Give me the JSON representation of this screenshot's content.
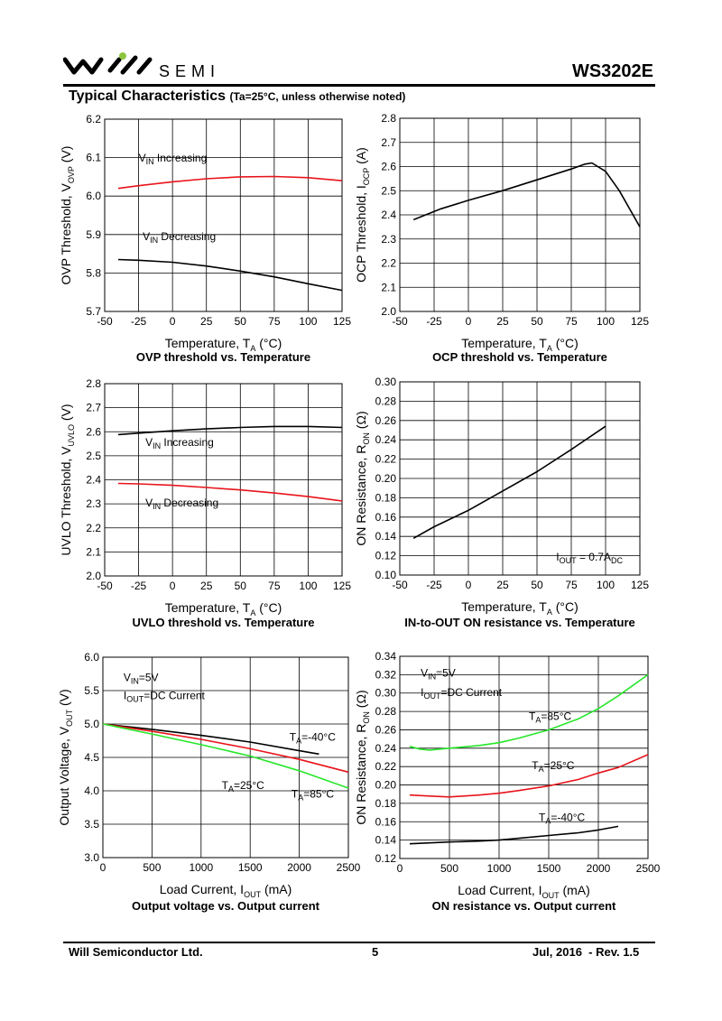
{
  "header": {
    "logo_text": "SEMI",
    "part_number": "WS3202E"
  },
  "section": {
    "title": "Typical Characteristics",
    "condition": "(Ta=25°C, unless otherwise noted)"
  },
  "footer": {
    "company": "Will Semiconductor Ltd.",
    "page": "5",
    "revision": "Jul, 2016  - Rev. 1.5"
  },
  "colors": {
    "red": "#e8141b",
    "black": "#000000",
    "green": "#25e628"
  },
  "chart_data": [
    {
      "type": "line",
      "caption": "OVP threshold vs. Temperature",
      "ylabel": "OVP Threshold, V",
      "ylabel_sub": "OVP",
      "ylabel_unit": " (V)",
      "xlabel": "Temperature, T",
      "xlabel_sub": "A",
      "xlabel_unit": " (°C)",
      "xlim": [
        -50,
        125
      ],
      "ylim": [
        5.7,
        6.2
      ],
      "xticks": [
        -50,
        -25,
        0,
        25,
        50,
        75,
        100,
        125
      ],
      "yticks": [
        5.7,
        5.8,
        5.9,
        6.0,
        6.1,
        6.2
      ],
      "ytick_labels": [
        "5.7",
        "5.8",
        "5.9",
        "6.0",
        "6.1",
        "6.2"
      ],
      "grid": true,
      "series": [
        {
          "color": "#e8141b",
          "x": [
            -40,
            -25,
            0,
            25,
            50,
            75,
            100,
            125
          ],
          "values": [
            6.02,
            6.027,
            6.037,
            6.045,
            6.05,
            6.051,
            6.048,
            6.04
          ]
        },
        {
          "color": "#000000",
          "x": [
            -40,
            -25,
            0,
            25,
            50,
            75,
            100,
            125
          ],
          "values": [
            5.835,
            5.833,
            5.828,
            5.818,
            5.805,
            5.79,
            5.772,
            5.755
          ]
        }
      ],
      "annotations": [
        {
          "main": "V",
          "sub": "IN",
          "rest": " Increasing",
          "x": -25,
          "y": 6.09
        },
        {
          "main": "V",
          "sub": "IN",
          "rest": " Decreasing",
          "x": -22,
          "y": 5.885
        }
      ]
    },
    {
      "type": "line",
      "caption": "OCP threshold vs. Temperature",
      "ylabel": "OCP Threshold, I",
      "ylabel_sub": "OCP",
      "ylabel_unit": " (A)",
      "xlabel": "Temperature,   T",
      "xlabel_sub": "A",
      "xlabel_unit": " (°C)",
      "xlim": [
        -50,
        125
      ],
      "ylim": [
        2.0,
        2.8
      ],
      "xticks": [
        -50,
        -25,
        0,
        25,
        50,
        75,
        100,
        125
      ],
      "yticks": [
        2.0,
        2.1,
        2.2,
        2.3,
        2.4,
        2.5,
        2.6,
        2.7,
        2.8
      ],
      "ytick_labels": [
        "2.0",
        "2.1",
        "2.2",
        "2.3",
        "2.4",
        "2.5",
        "2.6",
        "2.7",
        "2.8"
      ],
      "grid": true,
      "series": [
        {
          "color": "#000000",
          "x": [
            -40,
            -20,
            0,
            25,
            50,
            75,
            85,
            90,
            100,
            110,
            125
          ],
          "values": [
            2.38,
            2.425,
            2.46,
            2.5,
            2.545,
            2.59,
            2.61,
            2.615,
            2.58,
            2.5,
            2.35
          ]
        }
      ],
      "annotations": []
    },
    {
      "type": "line",
      "caption": "UVLO threshold vs. Temperature",
      "ylabel": "UVLO Threshold, V",
      "ylabel_sub": "UVLO",
      "ylabel_unit": " (V)",
      "xlabel": "Temperature, T",
      "xlabel_sub": "A",
      "xlabel_unit": " (°C)",
      "xlim": [
        -50,
        125
      ],
      "ylim": [
        2.0,
        2.8
      ],
      "xticks": [
        -50,
        -25,
        0,
        25,
        50,
        75,
        100,
        125
      ],
      "yticks": [
        2.0,
        2.1,
        2.2,
        2.3,
        2.4,
        2.5,
        2.6,
        2.7,
        2.8
      ],
      "ytick_labels": [
        "2.0",
        "2.1",
        "2.2",
        "2.3",
        "2.4",
        "2.5",
        "2.6",
        "2.7",
        "2.8"
      ],
      "grid": true,
      "series": [
        {
          "color": "#000000",
          "x": [
            -40,
            -25,
            0,
            25,
            50,
            75,
            100,
            125
          ],
          "values": [
            2.588,
            2.594,
            2.604,
            2.612,
            2.618,
            2.622,
            2.622,
            2.618
          ]
        },
        {
          "color": "#e8141b",
          "x": [
            -40,
            -25,
            0,
            25,
            50,
            75,
            100,
            125
          ],
          "values": [
            2.385,
            2.383,
            2.377,
            2.368,
            2.358,
            2.345,
            2.33,
            2.312
          ]
        }
      ],
      "annotations": [
        {
          "main": "V",
          "sub": "IN",
          "rest": " Increasing",
          "x": -20,
          "y": 2.54
        },
        {
          "main": "V",
          "sub": "IN",
          "rest": " Decreasing",
          "x": -20,
          "y": 2.29
        }
      ]
    },
    {
      "type": "line",
      "caption": "IN-to-OUT ON resistance vs. Temperature",
      "ylabel": "ON Resistance, R",
      "ylabel_sub": "ON",
      "ylabel_unit": " (Ω)",
      "xlabel": "Temperature, T",
      "xlabel_sub": "A",
      "xlabel_unit": " (°C)",
      "xlim": [
        -50,
        125
      ],
      "ylim": [
        0.1,
        0.3
      ],
      "xticks": [
        -50,
        -25,
        0,
        25,
        50,
        75,
        100,
        125
      ],
      "yticks": [
        0.1,
        0.12,
        0.14,
        0.16,
        0.18,
        0.2,
        0.22,
        0.24,
        0.26,
        0.28,
        0.3
      ],
      "ytick_labels": [
        "0.10",
        "0.12",
        "0.14",
        "0.16",
        "0.18",
        "0.20",
        "0.22",
        "0.24",
        "0.26",
        "0.28",
        "0.30"
      ],
      "grid": true,
      "series": [
        {
          "color": "#000000",
          "x": [
            -40,
            -25,
            0,
            25,
            50,
            75,
            100
          ],
          "values": [
            0.138,
            0.15,
            0.167,
            0.187,
            0.207,
            0.23,
            0.254
          ]
        }
      ],
      "annotations": [
        {
          "main": "I",
          "sub": "OUT",
          "rest": " = 0.7A",
          "sub2": "DC",
          "x": 64,
          "y": 0.115
        }
      ]
    },
    {
      "type": "line",
      "caption": "Output voltage vs. Output current",
      "ylabel": "Output Voltage, V",
      "ylabel_sub": "OUT",
      "ylabel_unit": " (V)",
      "xlabel": "Load Current, I",
      "xlabel_sub": "OUT",
      "xlabel_unit": " (mA)",
      "xlim": [
        0,
        2500
      ],
      "ylim": [
        3.0,
        6.0
      ],
      "xticks": [
        0,
        500,
        1000,
        1500,
        2000,
        2500
      ],
      "yticks": [
        3.0,
        3.5,
        4.0,
        4.5,
        5.0,
        5.5,
        6.0
      ],
      "ytick_labels": [
        "3.0",
        "3.5",
        "4.0",
        "4.5",
        "5.0",
        "5.5",
        "6.0"
      ],
      "grid": true,
      "series": [
        {
          "color": "#000000",
          "x": [
            0,
            500,
            1000,
            1500,
            2000,
            2200
          ],
          "values": [
            5.0,
            4.92,
            4.83,
            4.73,
            4.6,
            4.55
          ]
        },
        {
          "color": "#e8141b",
          "x": [
            0,
            500,
            1000,
            1500,
            2000,
            2500
          ],
          "values": [
            5.0,
            4.89,
            4.77,
            4.63,
            4.47,
            4.28
          ]
        },
        {
          "color": "#25e628",
          "x": [
            0,
            500,
            1000,
            1500,
            2000,
            2500
          ],
          "values": [
            5.0,
            4.85,
            4.69,
            4.52,
            4.3,
            4.04
          ]
        }
      ],
      "annotations": [
        {
          "main": "V",
          "sub": "IN",
          "rest": "=5V",
          "x": 210,
          "y": 5.64
        },
        {
          "main": "I",
          "sub": "OUT",
          "rest": "=DC Current",
          "x": 210,
          "y": 5.37
        },
        {
          "main": "T",
          "sub": "A",
          "rest": "=-40°C",
          "x": 1900,
          "y": 4.75
        },
        {
          "main": "T",
          "sub": "A",
          "rest": "=25°C",
          "x": 1210,
          "y": 4.03
        },
        {
          "main": "T",
          "sub": "A",
          "rest": "=85°C",
          "x": 1920,
          "y": 3.9
        }
      ]
    },
    {
      "type": "line",
      "caption": "ON resistance vs. Output current",
      "ylabel": "ON Resistance, R",
      "ylabel_sub": "ON",
      "ylabel_unit": " (Ω)",
      "xlabel": "Load Current, I",
      "xlabel_sub": "OUT",
      "xlabel_unit": " (mA)",
      "xlim": [
        0,
        2500
      ],
      "ylim": [
        0.12,
        0.34
      ],
      "xticks": [
        0,
        500,
        1000,
        1500,
        2000,
        2500
      ],
      "yticks": [
        0.12,
        0.14,
        0.16,
        0.18,
        0.2,
        0.22,
        0.24,
        0.26,
        0.28,
        0.3,
        0.32,
        0.34
      ],
      "ytick_labels": [
        "0.12",
        "0.14",
        "0.16",
        "0.18",
        "0.20",
        "0.22",
        "0.24",
        "0.26",
        "0.28",
        "0.30",
        "0.32",
        "0.34"
      ],
      "grid": true,
      "series": [
        {
          "color": "#25e628",
          "x": [
            100,
            200,
            300,
            500,
            800,
            1000,
            1200,
            1500,
            1800,
            2000,
            2200,
            2500
          ],
          "values": [
            0.242,
            0.239,
            0.238,
            0.24,
            0.243,
            0.246,
            0.251,
            0.26,
            0.272,
            0.283,
            0.297,
            0.32
          ]
        },
        {
          "color": "#e8141b",
          "x": [
            100,
            300,
            500,
            800,
            1000,
            1200,
            1500,
            1800,
            2000,
            2200,
            2500
          ],
          "values": [
            0.189,
            0.188,
            0.187,
            0.189,
            0.191,
            0.194,
            0.199,
            0.206,
            0.213,
            0.219,
            0.233
          ]
        },
        {
          "color": "#000000",
          "x": [
            100,
            300,
            500,
            800,
            1000,
            1200,
            1500,
            1800,
            2000,
            2200
          ],
          "values": [
            0.136,
            0.137,
            0.138,
            0.139,
            0.14,
            0.142,
            0.145,
            0.148,
            0.151,
            0.155
          ]
        }
      ],
      "annotations": [
        {
          "main": "V",
          "sub": "IN",
          "rest": "=5V",
          "x": 210,
          "y": 0.318
        },
        {
          "main": "I",
          "sub": "OUT",
          "rest": "=DC Current",
          "x": 210,
          "y": 0.297
        },
        {
          "main": "T",
          "sub": "A",
          "rest": "=85°C",
          "x": 1300,
          "y": 0.271
        },
        {
          "main": "T",
          "sub": "A",
          "rest": "=25°C",
          "x": 1330,
          "y": 0.217
        },
        {
          "main": "T",
          "sub": "A",
          "rest": "=-40°C",
          "x": 1400,
          "y": 0.161
        }
      ]
    }
  ]
}
